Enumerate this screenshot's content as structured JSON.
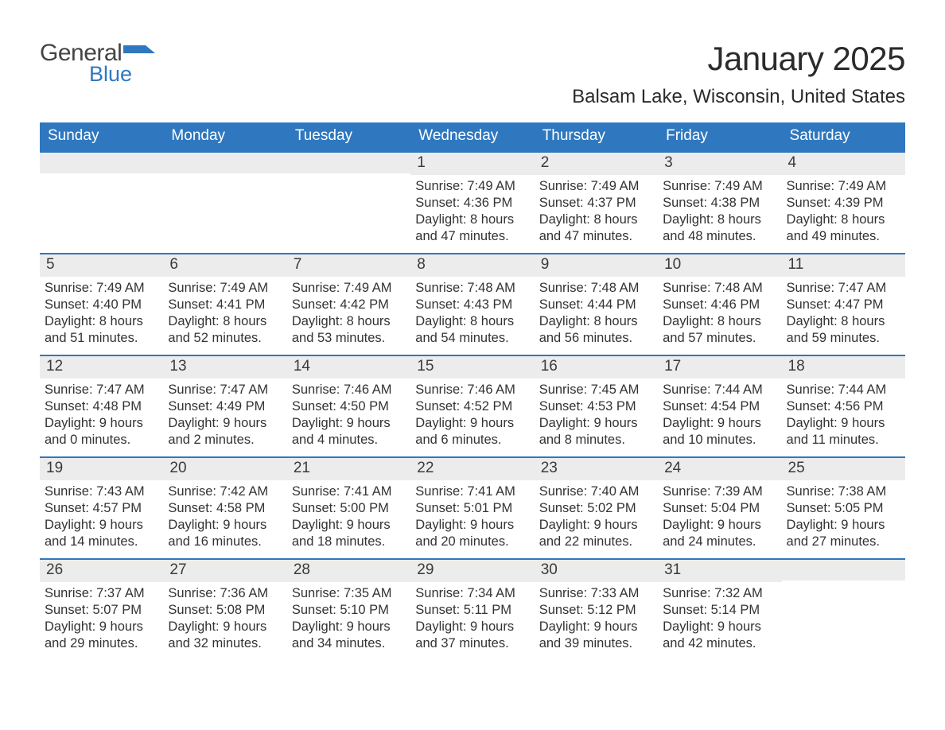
{
  "brand": {
    "word1": "General",
    "word2": "Blue",
    "accent_color": "#2f78bf"
  },
  "title": "January 2025",
  "subtitle": "Balsam Lake, Wisconsin, United States",
  "calendar": {
    "header_bg": "#2f78bf",
    "header_fg": "#ffffff",
    "daynum_bg": "#ececec",
    "row_border": "#2f78bf",
    "text_color": "#333333",
    "day_headers": [
      "Sunday",
      "Monday",
      "Tuesday",
      "Wednesday",
      "Thursday",
      "Friday",
      "Saturday"
    ],
    "weeks": [
      [
        {
          "n": "",
          "sunrise": "",
          "sunset": "",
          "daylight": ""
        },
        {
          "n": "",
          "sunrise": "",
          "sunset": "",
          "daylight": ""
        },
        {
          "n": "",
          "sunrise": "",
          "sunset": "",
          "daylight": ""
        },
        {
          "n": "1",
          "sunrise": "Sunrise: 7:49 AM",
          "sunset": "Sunset: 4:36 PM",
          "daylight": "Daylight: 8 hours and 47 minutes."
        },
        {
          "n": "2",
          "sunrise": "Sunrise: 7:49 AM",
          "sunset": "Sunset: 4:37 PM",
          "daylight": "Daylight: 8 hours and 47 minutes."
        },
        {
          "n": "3",
          "sunrise": "Sunrise: 7:49 AM",
          "sunset": "Sunset: 4:38 PM",
          "daylight": "Daylight: 8 hours and 48 minutes."
        },
        {
          "n": "4",
          "sunrise": "Sunrise: 7:49 AM",
          "sunset": "Sunset: 4:39 PM",
          "daylight": "Daylight: 8 hours and 49 minutes."
        }
      ],
      [
        {
          "n": "5",
          "sunrise": "Sunrise: 7:49 AM",
          "sunset": "Sunset: 4:40 PM",
          "daylight": "Daylight: 8 hours and 51 minutes."
        },
        {
          "n": "6",
          "sunrise": "Sunrise: 7:49 AM",
          "sunset": "Sunset: 4:41 PM",
          "daylight": "Daylight: 8 hours and 52 minutes."
        },
        {
          "n": "7",
          "sunrise": "Sunrise: 7:49 AM",
          "sunset": "Sunset: 4:42 PM",
          "daylight": "Daylight: 8 hours and 53 minutes."
        },
        {
          "n": "8",
          "sunrise": "Sunrise: 7:48 AM",
          "sunset": "Sunset: 4:43 PM",
          "daylight": "Daylight: 8 hours and 54 minutes."
        },
        {
          "n": "9",
          "sunrise": "Sunrise: 7:48 AM",
          "sunset": "Sunset: 4:44 PM",
          "daylight": "Daylight: 8 hours and 56 minutes."
        },
        {
          "n": "10",
          "sunrise": "Sunrise: 7:48 AM",
          "sunset": "Sunset: 4:46 PM",
          "daylight": "Daylight: 8 hours and 57 minutes."
        },
        {
          "n": "11",
          "sunrise": "Sunrise: 7:47 AM",
          "sunset": "Sunset: 4:47 PM",
          "daylight": "Daylight: 8 hours and 59 minutes."
        }
      ],
      [
        {
          "n": "12",
          "sunrise": "Sunrise: 7:47 AM",
          "sunset": "Sunset: 4:48 PM",
          "daylight": "Daylight: 9 hours and 0 minutes."
        },
        {
          "n": "13",
          "sunrise": "Sunrise: 7:47 AM",
          "sunset": "Sunset: 4:49 PM",
          "daylight": "Daylight: 9 hours and 2 minutes."
        },
        {
          "n": "14",
          "sunrise": "Sunrise: 7:46 AM",
          "sunset": "Sunset: 4:50 PM",
          "daylight": "Daylight: 9 hours and 4 minutes."
        },
        {
          "n": "15",
          "sunrise": "Sunrise: 7:46 AM",
          "sunset": "Sunset: 4:52 PM",
          "daylight": "Daylight: 9 hours and 6 minutes."
        },
        {
          "n": "16",
          "sunrise": "Sunrise: 7:45 AM",
          "sunset": "Sunset: 4:53 PM",
          "daylight": "Daylight: 9 hours and 8 minutes."
        },
        {
          "n": "17",
          "sunrise": "Sunrise: 7:44 AM",
          "sunset": "Sunset: 4:54 PM",
          "daylight": "Daylight: 9 hours and 10 minutes."
        },
        {
          "n": "18",
          "sunrise": "Sunrise: 7:44 AM",
          "sunset": "Sunset: 4:56 PM",
          "daylight": "Daylight: 9 hours and 11 minutes."
        }
      ],
      [
        {
          "n": "19",
          "sunrise": "Sunrise: 7:43 AM",
          "sunset": "Sunset: 4:57 PM",
          "daylight": "Daylight: 9 hours and 14 minutes."
        },
        {
          "n": "20",
          "sunrise": "Sunrise: 7:42 AM",
          "sunset": "Sunset: 4:58 PM",
          "daylight": "Daylight: 9 hours and 16 minutes."
        },
        {
          "n": "21",
          "sunrise": "Sunrise: 7:41 AM",
          "sunset": "Sunset: 5:00 PM",
          "daylight": "Daylight: 9 hours and 18 minutes."
        },
        {
          "n": "22",
          "sunrise": "Sunrise: 7:41 AM",
          "sunset": "Sunset: 5:01 PM",
          "daylight": "Daylight: 9 hours and 20 minutes."
        },
        {
          "n": "23",
          "sunrise": "Sunrise: 7:40 AM",
          "sunset": "Sunset: 5:02 PM",
          "daylight": "Daylight: 9 hours and 22 minutes."
        },
        {
          "n": "24",
          "sunrise": "Sunrise: 7:39 AM",
          "sunset": "Sunset: 5:04 PM",
          "daylight": "Daylight: 9 hours and 24 minutes."
        },
        {
          "n": "25",
          "sunrise": "Sunrise: 7:38 AM",
          "sunset": "Sunset: 5:05 PM",
          "daylight": "Daylight: 9 hours and 27 minutes."
        }
      ],
      [
        {
          "n": "26",
          "sunrise": "Sunrise: 7:37 AM",
          "sunset": "Sunset: 5:07 PM",
          "daylight": "Daylight: 9 hours and 29 minutes."
        },
        {
          "n": "27",
          "sunrise": "Sunrise: 7:36 AM",
          "sunset": "Sunset: 5:08 PM",
          "daylight": "Daylight: 9 hours and 32 minutes."
        },
        {
          "n": "28",
          "sunrise": "Sunrise: 7:35 AM",
          "sunset": "Sunset: 5:10 PM",
          "daylight": "Daylight: 9 hours and 34 minutes."
        },
        {
          "n": "29",
          "sunrise": "Sunrise: 7:34 AM",
          "sunset": "Sunset: 5:11 PM",
          "daylight": "Daylight: 9 hours and 37 minutes."
        },
        {
          "n": "30",
          "sunrise": "Sunrise: 7:33 AM",
          "sunset": "Sunset: 5:12 PM",
          "daylight": "Daylight: 9 hours and 39 minutes."
        },
        {
          "n": "31",
          "sunrise": "Sunrise: 7:32 AM",
          "sunset": "Sunset: 5:14 PM",
          "daylight": "Daylight: 9 hours and 42 minutes."
        },
        {
          "n": "",
          "sunrise": "",
          "sunset": "",
          "daylight": ""
        }
      ]
    ]
  }
}
